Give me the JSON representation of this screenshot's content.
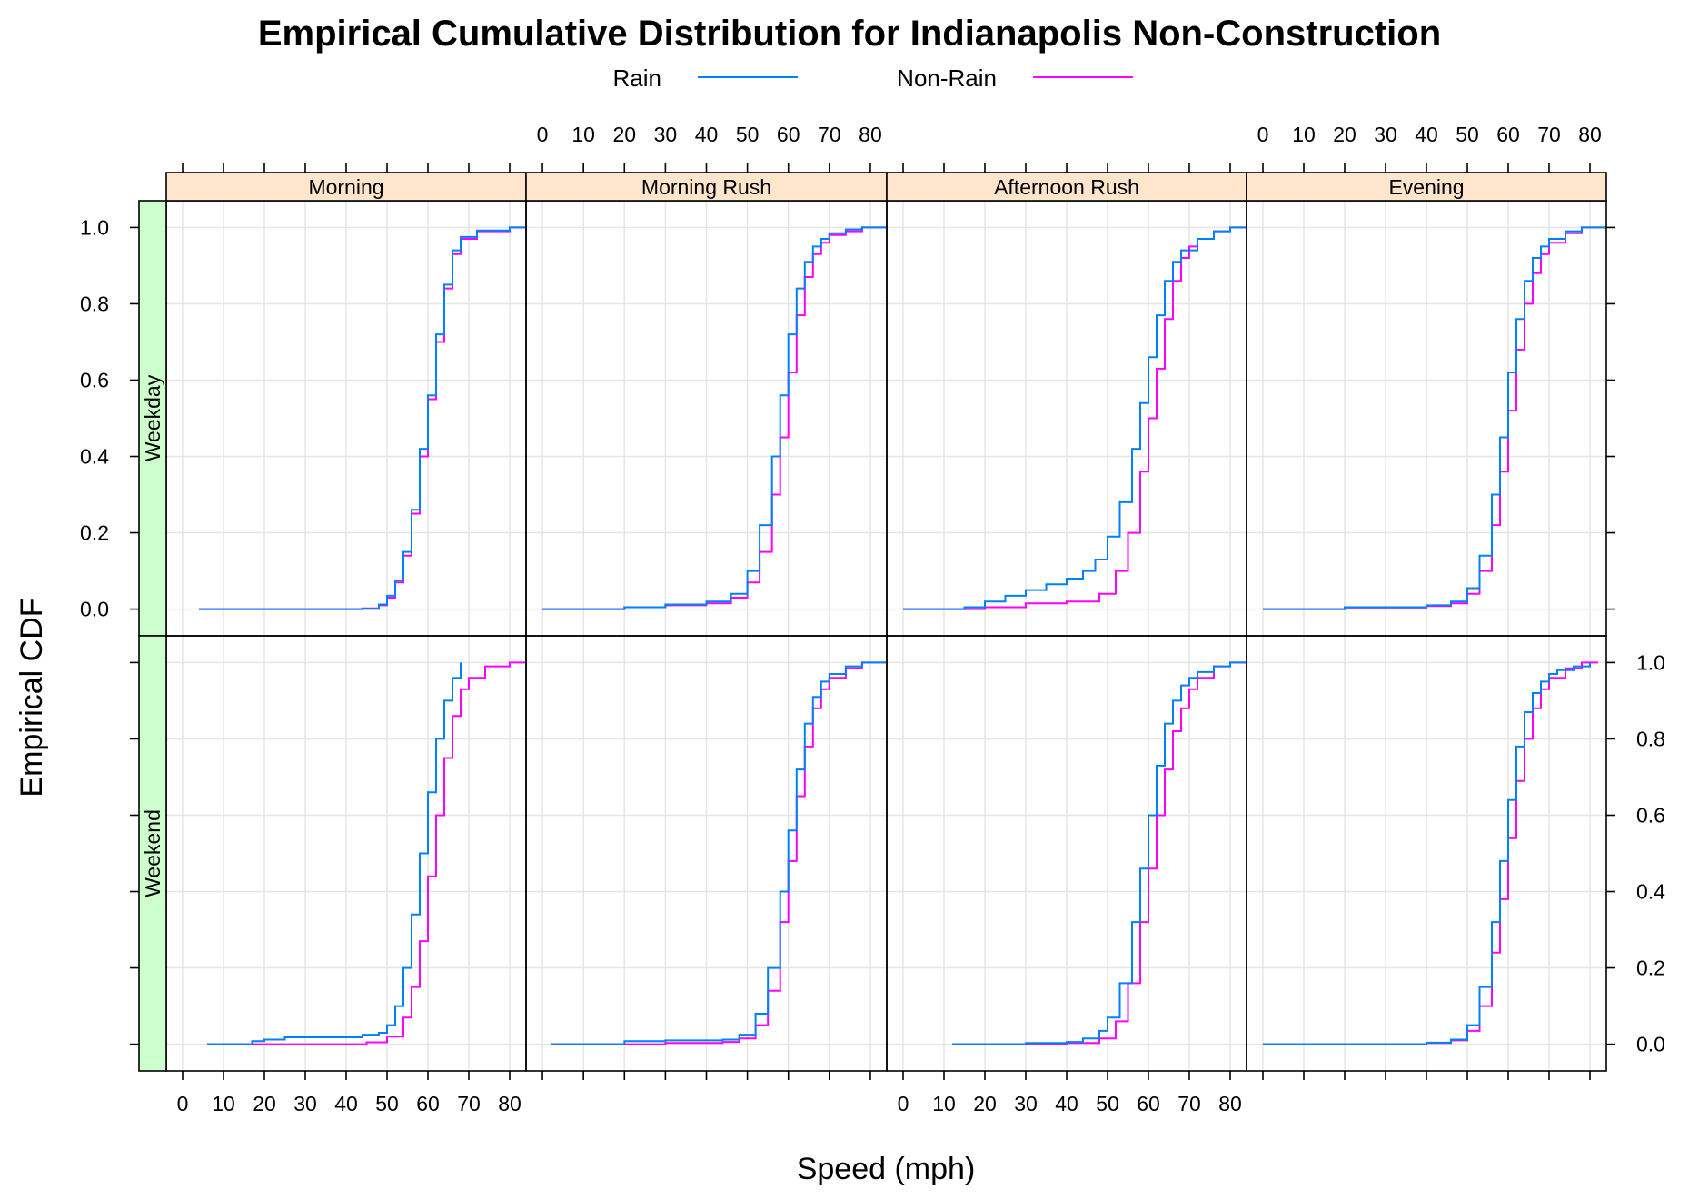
{
  "chart_data": {
    "type": "line",
    "subtype": "step-ecdf-trellis",
    "title": "Empirical Cumulative Distribution for Indianapolis Non-Construction",
    "xlabel": "Speed (mph)",
    "ylabel": "Empirical CDF",
    "xlim": [
      -4,
      84
    ],
    "ylim": [
      -0.07,
      1.07
    ],
    "xticks": [
      0,
      10,
      20,
      30,
      40,
      50,
      60,
      70,
      80
    ],
    "xtick_labels": [
      "0",
      "10",
      "20",
      "30",
      "40",
      "50",
      "60",
      "70",
      "80"
    ],
    "yticks": [
      0.0,
      0.2,
      0.4,
      0.6,
      0.8,
      1.0
    ],
    "ytick_labels": [
      "0.0",
      "0.2",
      "0.4",
      "0.6",
      "0.8",
      "1.0"
    ],
    "grid": true,
    "legend": {
      "position": "top",
      "entries": [
        {
          "name": "Rain",
          "color": "#0080ff"
        },
        {
          "name": "Non-Rain",
          "color": "#ff00ff"
        }
      ]
    },
    "columns": [
      "Morning",
      "Morning Rush",
      "Afternoon Rush",
      "Evening"
    ],
    "rows": [
      "Weekday",
      "Weekend"
    ],
    "strip_colors": {
      "column": "#ffe5cc",
      "row": "#ccffcc"
    },
    "panels": [
      {
        "row": "Weekday",
        "column": "Morning",
        "series": [
          {
            "name": "Non-Rain",
            "x": [
              4,
              44,
              48,
              50,
              52,
              54,
              56,
              58,
              60,
              62,
              64,
              66,
              68,
              72,
              80,
              84
            ],
            "y": [
              0,
              0.002,
              0.01,
              0.03,
              0.07,
              0.14,
              0.25,
              0.4,
              0.55,
              0.7,
              0.84,
              0.93,
              0.97,
              0.99,
              1.0,
              1.0
            ]
          },
          {
            "name": "Rain",
            "x": [
              4,
              44,
              48,
              50,
              52,
              54,
              56,
              58,
              60,
              62,
              64,
              66,
              68,
              72,
              80,
              84
            ],
            "y": [
              0,
              0.001,
              0.012,
              0.035,
              0.075,
              0.15,
              0.26,
              0.42,
              0.56,
              0.72,
              0.85,
              0.94,
              0.975,
              0.992,
              1.0,
              1.0
            ]
          }
        ]
      },
      {
        "row": "Weekday",
        "column": "Morning Rush",
        "series": [
          {
            "name": "Non-Rain",
            "x": [
              0,
              20,
              30,
              40,
              46,
              50,
              53,
              56,
              58,
              60,
              62,
              64,
              66,
              68,
              70,
              74,
              78,
              84
            ],
            "y": [
              0,
              0.005,
              0.01,
              0.015,
              0.03,
              0.07,
              0.15,
              0.3,
              0.45,
              0.62,
              0.77,
              0.87,
              0.93,
              0.96,
              0.98,
              0.99,
              1.0,
              1.0
            ]
          },
          {
            "name": "Rain",
            "x": [
              0,
              20,
              30,
              40,
              46,
              50,
              53,
              56,
              58,
              60,
              62,
              64,
              66,
              68,
              70,
              74,
              78,
              84
            ],
            "y": [
              0,
              0.005,
              0.012,
              0.02,
              0.04,
              0.1,
              0.22,
              0.4,
              0.56,
              0.72,
              0.84,
              0.91,
              0.95,
              0.97,
              0.985,
              0.995,
              1.0,
              1.0
            ]
          }
        ]
      },
      {
        "row": "Weekday",
        "column": "Afternoon Rush",
        "series": [
          {
            "name": "Non-Rain",
            "x": [
              0,
              20,
              30,
              40,
              48,
              52,
              55,
              58,
              60,
              62,
              64,
              66,
              68,
              70,
              72,
              76,
              80,
              84
            ],
            "y": [
              0,
              0.005,
              0.015,
              0.02,
              0.04,
              0.1,
              0.2,
              0.36,
              0.5,
              0.63,
              0.76,
              0.86,
              0.92,
              0.95,
              0.97,
              0.99,
              1.0,
              1.0
            ]
          },
          {
            "name": "Rain",
            "x": [
              0,
              15,
              20,
              25,
              30,
              35,
              40,
              44,
              47,
              50,
              53,
              56,
              58,
              60,
              62,
              64,
              66,
              68,
              72,
              76,
              80,
              84
            ],
            "y": [
              0,
              0.005,
              0.02,
              0.035,
              0.05,
              0.065,
              0.08,
              0.1,
              0.13,
              0.19,
              0.28,
              0.42,
              0.54,
              0.66,
              0.77,
              0.86,
              0.91,
              0.94,
              0.97,
              0.99,
              1.0,
              1.0
            ]
          }
        ]
      },
      {
        "row": "Weekday",
        "column": "Evening",
        "series": [
          {
            "name": "Non-Rain",
            "x": [
              0,
              20,
              40,
              46,
              50,
              53,
              56,
              58,
              60,
              62,
              64,
              66,
              68,
              70,
              74,
              78,
              84
            ],
            "y": [
              0,
              0.004,
              0.008,
              0.015,
              0.04,
              0.1,
              0.22,
              0.36,
              0.52,
              0.68,
              0.8,
              0.88,
              0.93,
              0.96,
              0.985,
              1.0,
              1.0
            ]
          },
          {
            "name": "Rain",
            "x": [
              0,
              20,
              40,
              46,
              50,
              53,
              56,
              58,
              60,
              62,
              64,
              66,
              68,
              70,
              74,
              78,
              84
            ],
            "y": [
              0,
              0.005,
              0.01,
              0.02,
              0.055,
              0.14,
              0.3,
              0.45,
              0.62,
              0.76,
              0.86,
              0.92,
              0.95,
              0.97,
              0.99,
              1.0,
              1.0
            ]
          }
        ]
      },
      {
        "row": "Weekend",
        "column": "Morning",
        "series": [
          {
            "name": "Non-Rain",
            "x": [
              6,
              45,
              50,
              54,
              56,
              58,
              60,
              62,
              64,
              66,
              68,
              70,
              74,
              80,
              84
            ],
            "y": [
              0,
              0.005,
              0.02,
              0.07,
              0.15,
              0.27,
              0.44,
              0.6,
              0.75,
              0.86,
              0.93,
              0.96,
              0.99,
              1.0,
              1.0
            ]
          },
          {
            "name": "Rain",
            "x": [
              6,
              17,
              20,
              25,
              44,
              48,
              50,
              52,
              54,
              56,
              58,
              60,
              62,
              64,
              66,
              68
            ],
            "y": [
              0,
              0.008,
              0.012,
              0.018,
              0.025,
              0.03,
              0.05,
              0.1,
              0.2,
              0.34,
              0.5,
              0.66,
              0.8,
              0.9,
              0.96,
              1.0
            ]
          }
        ]
      },
      {
        "row": "Weekend",
        "column": "Morning Rush",
        "series": [
          {
            "name": "Non-Rain",
            "x": [
              2,
              30,
              44,
              48,
              52,
              55,
              58,
              60,
              62,
              64,
              66,
              68,
              70,
              74,
              78,
              84
            ],
            "y": [
              0,
              0.003,
              0.006,
              0.015,
              0.05,
              0.14,
              0.32,
              0.48,
              0.65,
              0.78,
              0.88,
              0.93,
              0.96,
              0.985,
              1.0,
              1.0
            ]
          },
          {
            "name": "Rain",
            "x": [
              2,
              20,
              30,
              44,
              48,
              52,
              55,
              58,
              60,
              62,
              64,
              66,
              68,
              70,
              74,
              78,
              84
            ],
            "y": [
              0,
              0.008,
              0.01,
              0.012,
              0.025,
              0.08,
              0.2,
              0.4,
              0.56,
              0.72,
              0.84,
              0.91,
              0.95,
              0.97,
              0.99,
              1.0,
              1.0
            ]
          }
        ]
      },
      {
        "row": "Weekend",
        "column": "Afternoon Rush",
        "series": [
          {
            "name": "Non-Rain",
            "x": [
              12,
              40,
              48,
              52,
              55,
              58,
              60,
              62,
              64,
              66,
              68,
              70,
              72,
              76,
              80,
              84
            ],
            "y": [
              0,
              0.003,
              0.015,
              0.06,
              0.16,
              0.32,
              0.46,
              0.6,
              0.72,
              0.82,
              0.88,
              0.93,
              0.96,
              0.99,
              1.0,
              1.0
            ]
          },
          {
            "name": "Rain",
            "x": [
              12,
              30,
              40,
              44,
              48,
              50,
              53,
              56,
              58,
              60,
              62,
              64,
              66,
              68,
              70,
              72,
              76,
              80,
              84
            ],
            "y": [
              0,
              0.003,
              0.006,
              0.015,
              0.035,
              0.07,
              0.16,
              0.32,
              0.46,
              0.6,
              0.73,
              0.84,
              0.9,
              0.94,
              0.96,
              0.975,
              0.99,
              1.0,
              1.0
            ]
          }
        ]
      },
      {
        "row": "Weekend",
        "column": "Evening",
        "series": [
          {
            "name": "Non-Rain",
            "x": [
              0,
              40,
              46,
              50,
              53,
              56,
              58,
              60,
              62,
              64,
              66,
              68,
              70,
              74,
              78,
              82
            ],
            "y": [
              0,
              0.003,
              0.01,
              0.035,
              0.1,
              0.24,
              0.38,
              0.54,
              0.69,
              0.8,
              0.88,
              0.93,
              0.96,
              0.985,
              1.0,
              1.0
            ]
          },
          {
            "name": "Rain",
            "x": [
              0,
              40,
              46,
              50,
              53,
              56,
              58,
              60,
              62,
              64,
              66,
              68,
              70,
              72,
              76,
              80
            ],
            "y": [
              0,
              0.004,
              0.012,
              0.05,
              0.15,
              0.32,
              0.48,
              0.64,
              0.78,
              0.87,
              0.92,
              0.95,
              0.97,
              0.98,
              0.99,
              1.0
            ]
          }
        ]
      }
    ]
  }
}
